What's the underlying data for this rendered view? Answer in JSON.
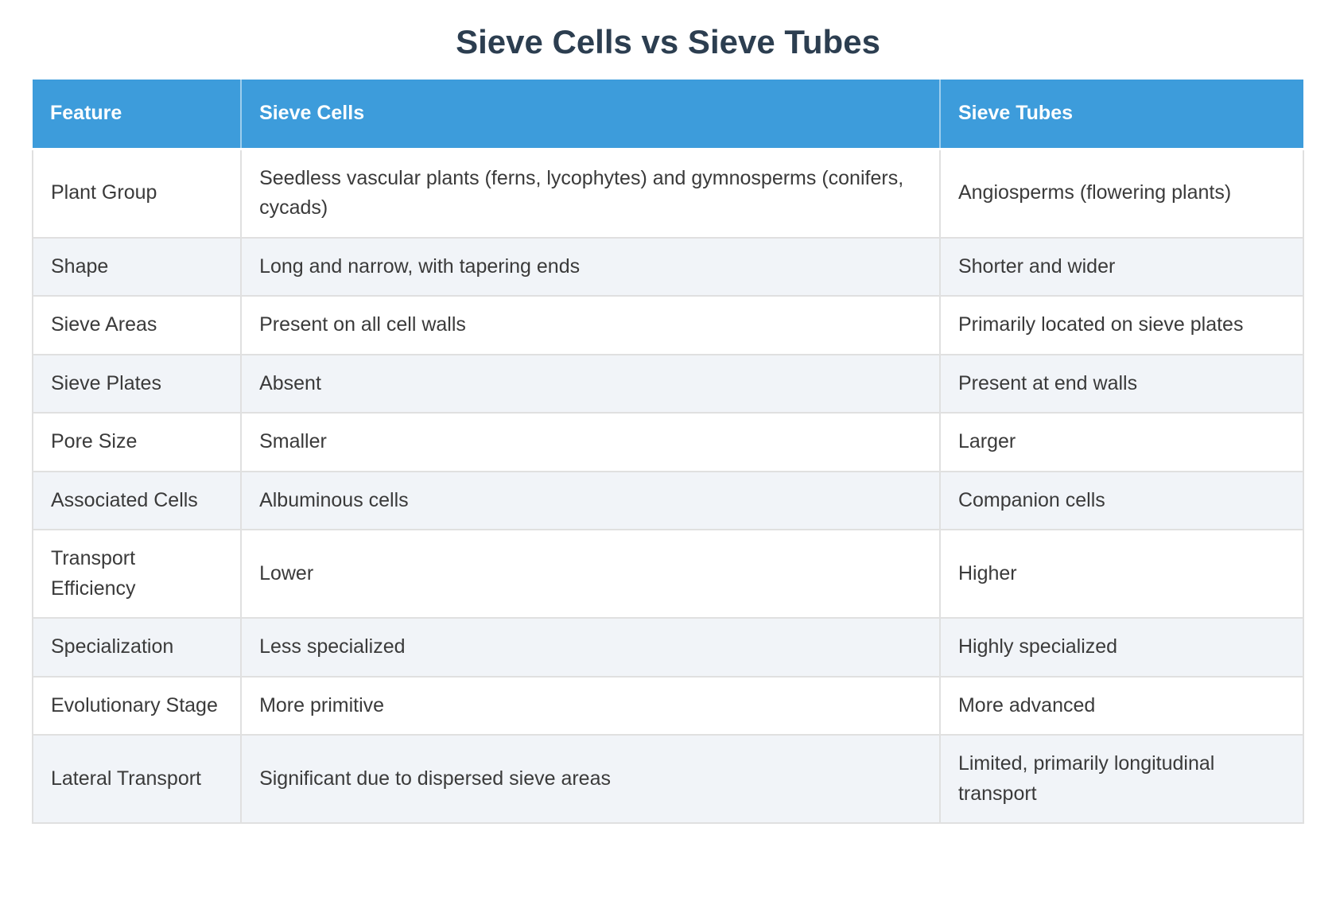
{
  "page": {
    "title": "Sieve Cells vs Sieve Tubes"
  },
  "colors": {
    "header_bg": "#3d9cdb",
    "header_text": "#ffffff",
    "title_text": "#2c3e50",
    "body_text": "#3a3a3a",
    "alt_row_bg": "#f1f4f8",
    "border": "#e0e0e0"
  },
  "chart_data": {
    "type": "table",
    "title": "Sieve Cells vs Sieve Tubes",
    "columns": [
      "Feature",
      "Sieve Cells",
      "Sieve Tubes"
    ],
    "rows": [
      {
        "feature": "Plant Group",
        "sieve_cells": "Seedless vascular plants (ferns, lycophytes) and gymnosperms (conifers, cycads)",
        "sieve_tubes": "Angiosperms (flowering plants)"
      },
      {
        "feature": "Shape",
        "sieve_cells": "Long and narrow, with tapering ends",
        "sieve_tubes": "Shorter and wider"
      },
      {
        "feature": "Sieve Areas",
        "sieve_cells": "Present on all cell walls",
        "sieve_tubes": "Primarily located on sieve plates"
      },
      {
        "feature": "Sieve Plates",
        "sieve_cells": "Absent",
        "sieve_tubes": "Present at end walls"
      },
      {
        "feature": "Pore Size",
        "sieve_cells": "Smaller",
        "sieve_tubes": "Larger"
      },
      {
        "feature": "Associated Cells",
        "sieve_cells": "Albuminous cells",
        "sieve_tubes": "Companion cells"
      },
      {
        "feature": "Transport Efficiency",
        "sieve_cells": "Lower",
        "sieve_tubes": "Higher"
      },
      {
        "feature": "Specialization",
        "sieve_cells": "Less specialized",
        "sieve_tubes": "Highly specialized"
      },
      {
        "feature": "Evolutionary Stage",
        "sieve_cells": "More primitive",
        "sieve_tubes": "More advanced"
      },
      {
        "feature": "Lateral Transport",
        "sieve_cells": "Significant due to dispersed sieve areas",
        "sieve_tubes": "Limited, primarily longitudinal transport"
      }
    ]
  }
}
